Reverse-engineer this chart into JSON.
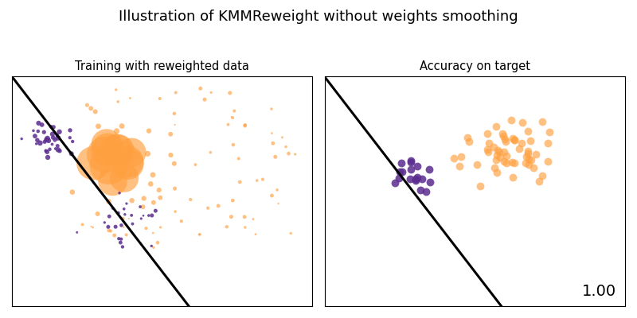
{
  "title": "Illustration of KMMReweight without weights smoothing",
  "subtitle_left": "Training with reweighted data",
  "subtitle_right": "Accuracy on target",
  "accuracy_text": "1.00",
  "orange_color": "#FFA040",
  "purple_color": "#5B2D8E",
  "line_color": "black",
  "random_seed": 1,
  "figsize": [
    8.0,
    4.0
  ],
  "dpi": 100,
  "orange_alpha": 0.65,
  "purple_alpha": 0.85
}
